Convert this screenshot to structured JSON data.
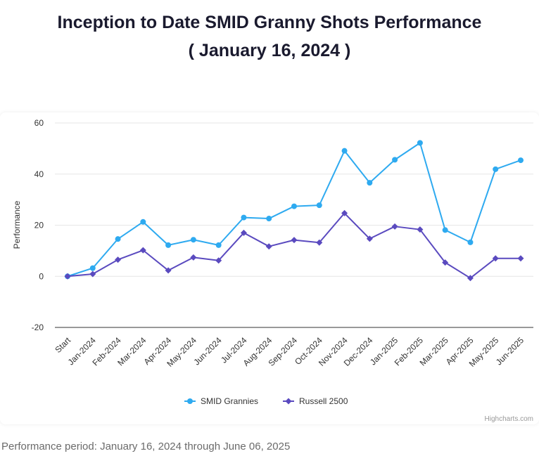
{
  "title": {
    "line1": "Inception to Date SMID Granny Shots Performance",
    "line2": "( January 16, 2024 )"
  },
  "footer_text": "Performance period: January 16, 2024 through June 06, 2025",
  "credits": "Highcharts.com",
  "chart_data": {
    "type": "line",
    "categories": [
      "Start",
      "Jan-2024",
      "Feb-2024",
      "Mar-2024",
      "Apr-2024",
      "May-2024",
      "Jun-2024",
      "Jul-2024",
      "Aug-2024",
      "Sep-2024",
      "Oct-2024",
      "Nov-2024",
      "Dec-2024",
      "Jan-2025",
      "Feb-2025",
      "Mar-2025",
      "Apr-2025",
      "May-2025",
      "Jun-2025"
    ],
    "ylabel": "Performance",
    "xlabel": "",
    "ylim": [
      -20,
      60
    ],
    "yticks": [
      -20,
      0,
      20,
      40,
      60
    ],
    "grid": true,
    "legend_position": "bottom-center",
    "series": [
      {
        "name": "SMID Grannies",
        "color": "#2eaaf0",
        "marker": "circle",
        "values": [
          0,
          3.2,
          14.6,
          21.3,
          12.2,
          14.3,
          12.2,
          23.0,
          22.6,
          27.4,
          27.8,
          49.1,
          36.6,
          45.6,
          52.2,
          18.1,
          13.3,
          41.9,
          45.4
        ]
      },
      {
        "name": "Russell 2500",
        "color": "#5a4abf",
        "marker": "diamond",
        "values": [
          0,
          0.9,
          6.5,
          10.2,
          2.3,
          7.4,
          6.2,
          17.0,
          11.7,
          14.2,
          13.2,
          24.7,
          14.7,
          19.5,
          18.3,
          5.4,
          -0.7,
          7.0,
          7.0
        ]
      }
    ]
  }
}
